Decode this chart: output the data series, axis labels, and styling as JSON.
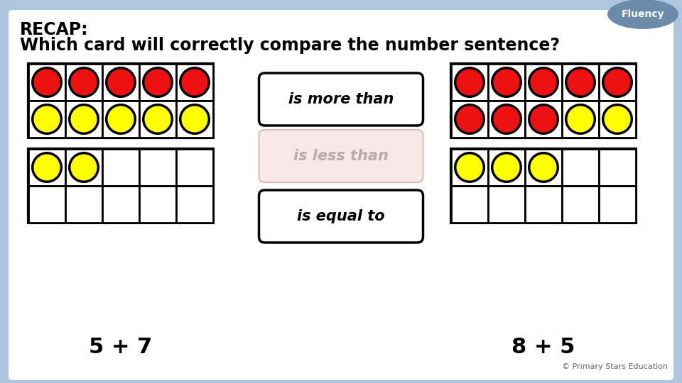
{
  "title_line1": "RECAP:",
  "title_line2": "Which card will correctly compare the number sentence?",
  "bg_color": "#aec6e0",
  "white": "#ffffff",
  "red": "#ee1111",
  "yellow": "#ffff00",
  "fluency_bg": "#6a8caa",
  "fluency_text": "Fluency",
  "copyright": "© Primary Stars Education",
  "left_label": "5 + 7",
  "right_label": "8 + 5",
  "left_top_circles": [
    [
      1,
      1,
      1,
      1,
      1
    ],
    [
      2,
      2,
      2,
      2,
      2
    ]
  ],
  "left_bot_circles": [
    [
      2,
      2,
      0,
      0,
      0
    ],
    [
      0,
      0,
      0,
      0,
      0
    ]
  ],
  "right_top_circles": [
    [
      1,
      1,
      1,
      1,
      1
    ],
    [
      1,
      1,
      1,
      2,
      2
    ]
  ],
  "right_bot_circles": [
    [
      2,
      2,
      2,
      0,
      0
    ],
    [
      0,
      0,
      0,
      0,
      0
    ]
  ],
  "card_more_text": "is more than",
  "card_less_text": "is less than",
  "card_equal_text": "is equal to",
  "fig_w": 9.6,
  "fig_h": 5.4,
  "dpi": 100
}
